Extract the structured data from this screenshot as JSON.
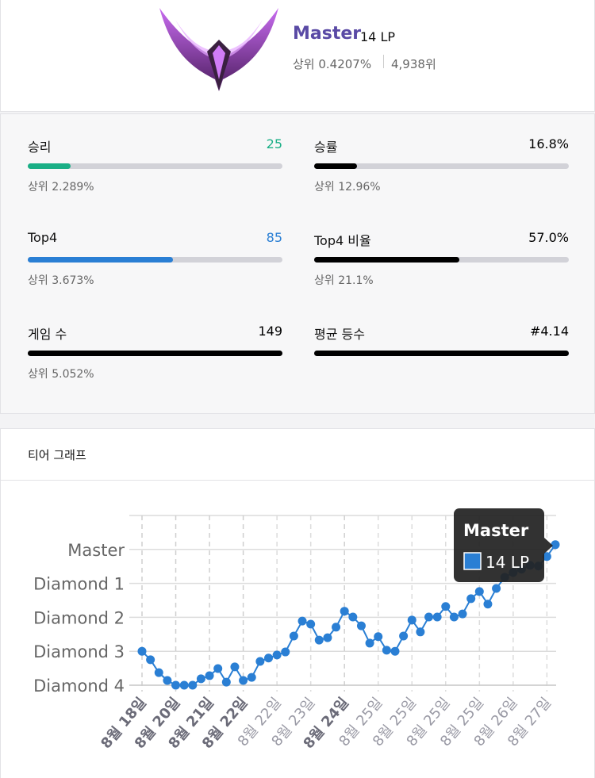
{
  "profile": {
    "tier": "Master",
    "lp": "14 LP",
    "rank_percent": "상위 0.4207%",
    "rank": "4,938위"
  },
  "stats": [
    {
      "label": "승리",
      "value": "25",
      "progress": 16.8,
      "percentile": "상위 2.289%",
      "color": "#1aaf86"
    },
    {
      "label": "승률",
      "value": "16.8%",
      "progress": 16.8,
      "percentile": "상위 12.96%",
      "color": "#000000"
    },
    {
      "label": "Top4",
      "value": "85",
      "progress": 57.0,
      "percentile": "상위 3.673%",
      "color": "#2a7fd4"
    },
    {
      "label": "Top4 비율",
      "value": "57.0%",
      "progress": 57.0,
      "percentile": "상위 21.1%",
      "color": "#000000"
    },
    {
      "label": "게임 수",
      "value": "149",
      "progress": 100,
      "percentile": "상위 5.052%",
      "color": "#000000"
    },
    {
      "label": "평균 등수",
      "value": "#4.14",
      "progress": 100,
      "color": "#000000"
    }
  ],
  "chart_data": {
    "type": "line",
    "title": "티어 그래프",
    "categories": [
      "8월 18일",
      null,
      null,
      null,
      "8월 20일",
      null,
      null,
      null,
      "8월 21일",
      null,
      null,
      null,
      "8월 22일",
      null,
      null,
      null,
      "8월 22일",
      null,
      null,
      null,
      "8월 23일",
      null,
      null,
      null,
      "8월 24일",
      null,
      null,
      null,
      "8월 25일",
      null,
      null,
      null,
      "8월 25일",
      null,
      null,
      null,
      "8월 25일",
      null,
      null,
      null,
      "8월 25일",
      null,
      null,
      null,
      "8월 26일",
      null,
      null,
      null,
      "8월 27일",
      null
    ],
    "bold_categories": [
      0,
      4,
      8,
      12,
      24
    ],
    "series": [
      {
        "name": "Master",
        "color": "#2a7fd4",
        "values": [
          1.0,
          0.75,
          0.37,
          0.14,
          0,
          0,
          0,
          0.19,
          0.28,
          0.49,
          0.09,
          0.54,
          0.14,
          0.23,
          0.7,
          0.8,
          0.89,
          0.98,
          1.45,
          1.89,
          1.8,
          1.33,
          1.4,
          1.71,
          2.18,
          2.01,
          1.75,
          1.24,
          1.43,
          1.03,
          1.0,
          1.45,
          1.92,
          1.57,
          2.01,
          2.01,
          2.32,
          2.01,
          2.1,
          2.55,
          2.76,
          2.39,
          2.85,
          3.18,
          3.32,
          3.42,
          3.53,
          3.51,
          3.79,
          4.14
        ]
      }
    ],
    "ylim": [
      0,
      5
    ],
    "yticks": [
      {
        "value": 0,
        "label": "Diamond 4"
      },
      {
        "value": 1,
        "label": "Diamond 3"
      },
      {
        "value": 2,
        "label": "Diamond 2"
      },
      {
        "value": 3,
        "label": "Diamond 1"
      },
      {
        "value": 4,
        "label": "Master"
      },
      {
        "value": 5,
        "label": ""
      }
    ],
    "grid": true,
    "tooltip": {
      "title": "Master",
      "text": "14 LP"
    }
  }
}
